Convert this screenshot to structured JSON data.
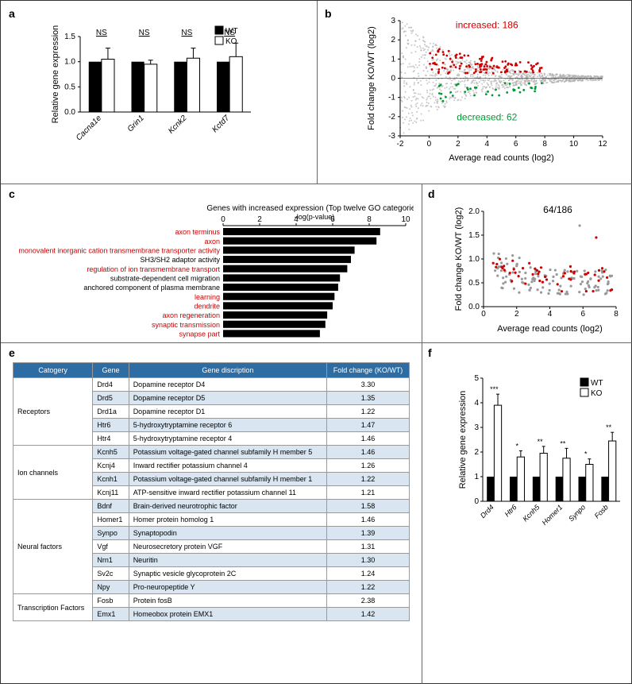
{
  "panel_a": {
    "label": "a",
    "type": "bar",
    "ylabel": "Relative gene expression",
    "ylim": [
      0,
      1.5
    ],
    "ytick_step": 0.5,
    "categories": [
      "Cacna1e",
      "Grin1",
      "Kcnk2",
      "Kctd7"
    ],
    "wt_values": [
      1.0,
      1.0,
      1.0,
      1.0
    ],
    "ko_values": [
      1.05,
      0.95,
      1.07,
      1.1
    ],
    "ko_err": [
      0.22,
      0.08,
      0.2,
      0.27
    ],
    "ns_label": "NS",
    "legend": {
      "wt": "WT",
      "ko": "KO"
    },
    "colors": {
      "wt": "#000000",
      "ko": "#ffffff",
      "axis": "#000000",
      "text": "#000000"
    }
  },
  "panel_b": {
    "label": "b",
    "type": "scatter",
    "xlabel": "Average read counts (log2)",
    "ylabel": "Fold change KO/WT (log2)",
    "xlim": [
      -2,
      12
    ],
    "ylim": [
      -3,
      3
    ],
    "xtick_step": 2,
    "ytick_step": 1,
    "annotations": {
      "increased": "increased: 186",
      "decreased": "decreased: 62"
    },
    "colors": {
      "bg_points": "#b0b0b0",
      "increased": "#cc0000",
      "decreased": "#009933",
      "axis": "#000000",
      "inc_text": "#cc0000",
      "dec_text": "#009933"
    }
  },
  "panel_c": {
    "label": "c",
    "type": "bar_horizontal",
    "title": "Genes with increased expression (Top twelve GO categories)",
    "xlabel": "-log(p-value)",
    "xlim": [
      0,
      10
    ],
    "xtick_step": 2,
    "bars": [
      {
        "label": "axon terminus",
        "value": 8.6,
        "highlight": true
      },
      {
        "label": "axon",
        "value": 8.4,
        "highlight": true
      },
      {
        "label": "monovalent inorganic cation transmembrane transporter activity",
        "value": 7.2,
        "highlight": true
      },
      {
        "label": "SH3/SH2 adaptor activity",
        "value": 7.0,
        "highlight": false
      },
      {
        "label": "regulation of ion transmembrane transport",
        "value": 6.8,
        "highlight": true
      },
      {
        "label": "substrate-dependent cell migration",
        "value": 6.4,
        "highlight": false
      },
      {
        "label": "anchored component of plasma membrane",
        "value": 6.3,
        "highlight": false
      },
      {
        "label": "learning",
        "value": 6.1,
        "highlight": true
      },
      {
        "label": "dendrite",
        "value": 6.0,
        "highlight": true
      },
      {
        "label": "axon regeneration",
        "value": 5.7,
        "highlight": true
      },
      {
        "label": "synaptic transmission",
        "value": 5.6,
        "highlight": true
      },
      {
        "label": "synapse part",
        "value": 5.3,
        "highlight": true
      }
    ],
    "colors": {
      "bar": "#000000",
      "highlight_text": "#cc0000",
      "normal_text": "#000000"
    }
  },
  "panel_d": {
    "label": "d",
    "type": "scatter",
    "annotation": "64/186",
    "xlabel": "Average read counts (log2)",
    "ylabel": "Fold change KO/WT (log2)",
    "xlim": [
      0,
      8
    ],
    "ylim": [
      0,
      2
    ],
    "xtick_step": 2,
    "ytick_step": 0.5,
    "colors": {
      "gray": "#999999",
      "red": "#cc0000",
      "axis": "#000000"
    }
  },
  "panel_e": {
    "label": "e",
    "type": "table",
    "columns": [
      "Catogery",
      "Gene",
      "Gene discription",
      "Fold change (KO/WT)"
    ],
    "rows": [
      {
        "cat": "Receptors",
        "gene": "Drd4",
        "desc": "Dopamine receptor D4",
        "fc": "3.30",
        "span_start": true,
        "span": 5,
        "light": false
      },
      {
        "gene": "Drd5",
        "desc": "Dopamine receptor D5",
        "fc": "1.35",
        "light": true
      },
      {
        "gene": "Drd1a",
        "desc": "Dopamine receptor D1",
        "fc": "1.22",
        "light": false
      },
      {
        "gene": "Htr6",
        "desc": "5-hydroxytryptamine receptor 6",
        "fc": "1.47",
        "light": true
      },
      {
        "gene": "Htr4",
        "desc": "5-hydroxytryptamine receptor 4",
        "fc": "1.46",
        "light": false
      },
      {
        "cat": "Ion channels",
        "gene": "Kcnh5",
        "desc": "Potassium voltage-gated channel subfamily H member 5",
        "fc": "1.46",
        "span_start": true,
        "span": 4,
        "light": true
      },
      {
        "gene": "Kcnj4",
        "desc": "Inward rectifier potassium channel 4",
        "fc": "1.26",
        "light": false
      },
      {
        "gene": "Kcnh1",
        "desc": "Potassium voltage-gated channel subfamily H member 1",
        "fc": "1.22",
        "light": true
      },
      {
        "gene": "Kcnj11",
        "desc": "ATP-sensitive inward rectifier potassium channel 11",
        "fc": "1.21",
        "light": false
      },
      {
        "cat": "Neural factors",
        "gene": "Bdnf",
        "desc": "Brain-derived neurotrophic factor",
        "fc": "1.58",
        "span_start": true,
        "span": 7,
        "light": true
      },
      {
        "gene": "Homer1",
        "desc": "Homer protein homolog 1",
        "fc": "1.46",
        "light": false
      },
      {
        "gene": "Synpo",
        "desc": "Synaptopodin",
        "fc": "1.39",
        "light": true
      },
      {
        "gene": "Vgf",
        "desc": "Neurosecretory protein VGF",
        "fc": "1.31",
        "light": false
      },
      {
        "gene": "Nrn1",
        "desc": "Neuritin",
        "fc": "1.30",
        "light": true
      },
      {
        "gene": "Sv2c",
        "desc": "Synaptic vesicle glycoprotein 2C",
        "fc": "1.24",
        "light": false
      },
      {
        "gene": "Npy",
        "desc": "Pro-neuropeptide Y",
        "fc": "1.22",
        "light": true
      },
      {
        "cat": "Transcription Factors",
        "gene": "Fosb",
        "desc": "Protein fosB",
        "fc": "2.38",
        "span_start": true,
        "span": 2,
        "light": false
      },
      {
        "gene": "Emx1",
        "desc": "Homeobox protein EMX1",
        "fc": "1.42",
        "light": true
      }
    ],
    "colors": {
      "header_bg": "#2e6da4",
      "header_text": "#ffffff",
      "row_light": "#d9e6f2",
      "border": "#999999"
    }
  },
  "panel_f": {
    "label": "f",
    "type": "bar",
    "ylabel": "Relative gene expression",
    "ylim": [
      0,
      5
    ],
    "ytick_step": 1,
    "categories": [
      "Drd4",
      "Htr6",
      "Kcnh5",
      "Homer1",
      "Synpo",
      "Fosb"
    ],
    "wt_values": [
      1.0,
      1.0,
      1.0,
      1.0,
      1.0,
      1.0
    ],
    "ko_values": [
      3.9,
      1.8,
      1.95,
      1.75,
      1.5,
      2.45
    ],
    "ko_err": [
      0.45,
      0.25,
      0.28,
      0.4,
      0.22,
      0.35
    ],
    "sig": [
      "***",
      "*",
      "**",
      "**",
      "*",
      "**"
    ],
    "legend": {
      "wt": "WT",
      "ko": "KO"
    },
    "colors": {
      "wt": "#000000",
      "ko": "#ffffff",
      "axis": "#000000"
    }
  }
}
